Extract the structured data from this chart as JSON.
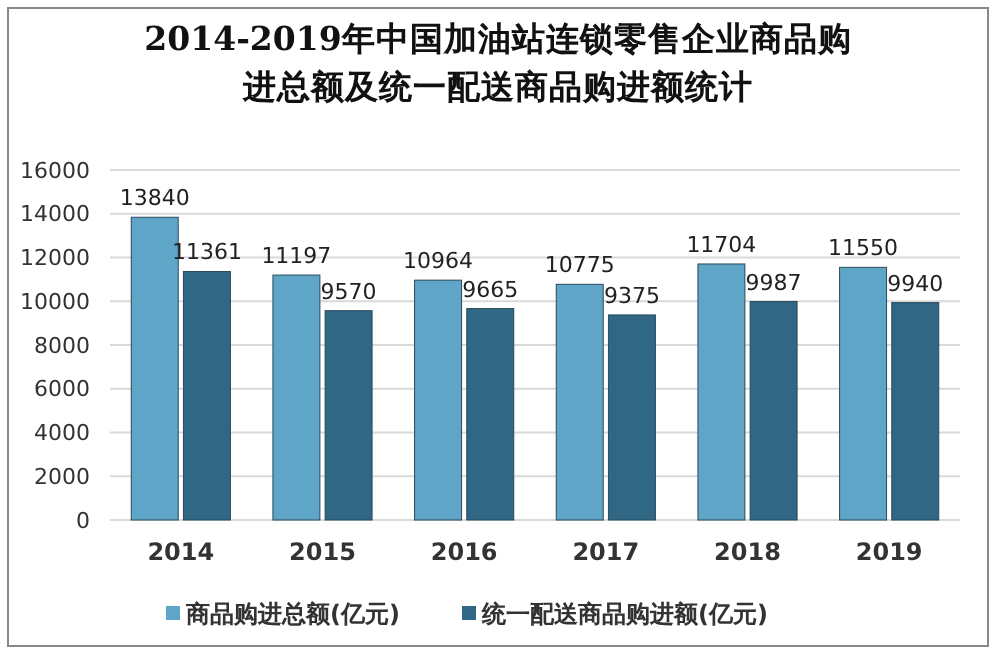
{
  "chart_data": {
    "type": "bar",
    "title": "2014-2019年中国加油站连锁零售企业商品购进总额及统一配送商品购进额统计",
    "categories": [
      "2014",
      "2015",
      "2016",
      "2017",
      "2018",
      "2019"
    ],
    "series": [
      {
        "name": "商品购进总额(亿元)",
        "color": "#5fa5c8",
        "values": [
          13840,
          11197,
          10964,
          10775,
          11704,
          11550
        ]
      },
      {
        "name": "统一配送商品购进额(亿元)",
        "color": "#2f6784",
        "values": [
          11361,
          9570,
          9665,
          9375,
          9987,
          9940
        ]
      }
    ],
    "ylim": [
      0,
      16000
    ],
    "yticks": [
      0,
      2000,
      4000,
      6000,
      8000,
      10000,
      12000,
      14000,
      16000
    ],
    "grid": "y",
    "data_labels": true,
    "legend": "bottom"
  }
}
